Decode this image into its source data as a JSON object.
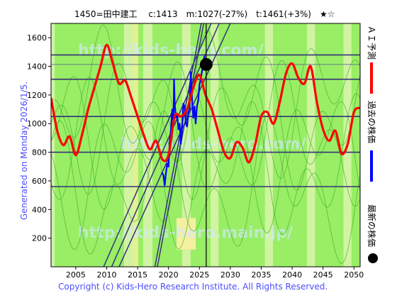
{
  "header": {
    "title": "1450=田中建工　 c:1413　m:1027(-27%)　t:1461(+3%)　★☆"
  },
  "side_text": "Generated on Monday 2026/1/5.",
  "footer": "Copyright (c) Kids-Hero Research Institute. All Rights Reserved.",
  "watermarks": [
    "http://kids-hero.com/",
    "http://kids-hero.com/",
    "http://kids-hero.main.jp/"
  ],
  "legend": [
    {
      "label": "ＡＩ予測",
      "color": "#ff0000",
      "icon": "line-swatch"
    },
    {
      "label": "過去の株価",
      "color": "#0000ff",
      "icon": "line-swatch"
    },
    {
      "label": "最新の株価",
      "color": "#000000",
      "icon": "dot-swatch"
    }
  ],
  "colors": {
    "prediction": "#ff0000",
    "past": "#0000ff",
    "latest_dot": "#000000",
    "band_green": "#99ee66",
    "band_light": "#ddf5b0",
    "band_yellow": "#f5f0a0",
    "navy": "#333377"
  },
  "chart_data": {
    "type": "line",
    "xlim": [
      2001,
      2051
    ],
    "ylim": [
      0,
      1700
    ],
    "x_ticks": [
      2005,
      2010,
      2015,
      2020,
      2025,
      2030,
      2035,
      2040,
      2045,
      2050
    ],
    "y_ticks": [
      200,
      400,
      600,
      800,
      1000,
      1200,
      1400,
      1600
    ],
    "grid": false,
    "horizontal_levels": [
      560,
      800,
      1050,
      1310,
      1480
    ],
    "current_price_level": 1413,
    "current_year_line": 2026.1,
    "latest_point": {
      "x": 2026.1,
      "y": 1413
    },
    "trend_lines": [
      {
        "x": [
          2009.5,
          2026.9
        ],
        "y": [
          0,
          1700
        ]
      },
      {
        "x": [
          2010.8,
          2028.2
        ],
        "y": [
          0,
          1700
        ]
      },
      {
        "x": [
          2012.0,
          2030.0
        ],
        "y": [
          0,
          1700
        ]
      },
      {
        "x": [
          2017.8,
          2025.3
        ],
        "y": [
          0,
          1700
        ]
      },
      {
        "x": [
          2018.2,
          2025.7
        ],
        "y": [
          0,
          1700
        ]
      }
    ],
    "series": [
      {
        "name": "ＡＩ予測",
        "points": [
          [
            2001,
            1180
          ],
          [
            2002,
            950
          ],
          [
            2003,
            850
          ],
          [
            2004,
            910
          ],
          [
            2005,
            780
          ],
          [
            2006,
            920
          ],
          [
            2007,
            1100
          ],
          [
            2008,
            1250
          ],
          [
            2009,
            1400
          ],
          [
            2010,
            1550
          ],
          [
            2011,
            1420
          ],
          [
            2012,
            1280
          ],
          [
            2013,
            1300
          ],
          [
            2014,
            1180
          ],
          [
            2015,
            1050
          ],
          [
            2016,
            920
          ],
          [
            2017,
            820
          ],
          [
            2018,
            880
          ],
          [
            2019,
            750
          ],
          [
            2020,
            780
          ],
          [
            2021,
            1050
          ],
          [
            2022,
            1050
          ],
          [
            2023,
            1100
          ],
          [
            2024,
            1250
          ],
          [
            2025,
            1340
          ],
          [
            2026,
            1200
          ],
          [
            2027,
            1100
          ],
          [
            2028,
            950
          ],
          [
            2029,
            800
          ],
          [
            2030,
            760
          ],
          [
            2031,
            870
          ],
          [
            2032,
            830
          ],
          [
            2033,
            730
          ],
          [
            2034,
            850
          ],
          [
            2035,
            1050
          ],
          [
            2036,
            1080
          ],
          [
            2037,
            1000
          ],
          [
            2038,
            1150
          ],
          [
            2039,
            1350
          ],
          [
            2040,
            1420
          ],
          [
            2041,
            1320
          ],
          [
            2042,
            1280
          ],
          [
            2043,
            1400
          ],
          [
            2044,
            1150
          ],
          [
            2045,
            960
          ],
          [
            2046,
            880
          ],
          [
            2047,
            950
          ],
          [
            2048,
            790
          ],
          [
            2049,
            860
          ],
          [
            2050,
            1080
          ],
          [
            2051,
            1110
          ]
        ]
      },
      {
        "name": "過去の株価",
        "points": [
          [
            2018.9,
            660
          ],
          [
            2019.2,
            640
          ],
          [
            2019.4,
            570
          ],
          [
            2019.6,
            660
          ],
          [
            2019.8,
            720
          ],
          [
            2020.0,
            700
          ],
          [
            2020.2,
            880
          ],
          [
            2020.4,
            960
          ],
          [
            2020.6,
            1100
          ],
          [
            2020.8,
            1000
          ],
          [
            2020.9,
            1310
          ],
          [
            2021.0,
            1150
          ],
          [
            2021.2,
            1040
          ],
          [
            2021.4,
            1070
          ],
          [
            2021.6,
            960
          ],
          [
            2021.8,
            1000
          ],
          [
            2022.0,
            860
          ],
          [
            2022.2,
            980
          ],
          [
            2022.4,
            1140
          ],
          [
            2022.6,
            1120
          ],
          [
            2022.8,
            1000
          ],
          [
            2023.0,
            980
          ],
          [
            2023.2,
            1080
          ],
          [
            2023.4,
            1100
          ],
          [
            2023.6,
            1360
          ],
          [
            2023.8,
            1180
          ],
          [
            2024.0,
            1040
          ],
          [
            2024.2,
            1120
          ],
          [
            2024.4,
            1000
          ],
          [
            2024.6,
            1120
          ],
          [
            2024.8,
            1160
          ],
          [
            2025.0,
            1270
          ],
          [
            2025.2,
            1310
          ],
          [
            2025.4,
            1360
          ],
          [
            2025.6,
            1420
          ],
          [
            2025.8,
            1470
          ],
          [
            2026.0,
            1413
          ]
        ]
      }
    ]
  }
}
